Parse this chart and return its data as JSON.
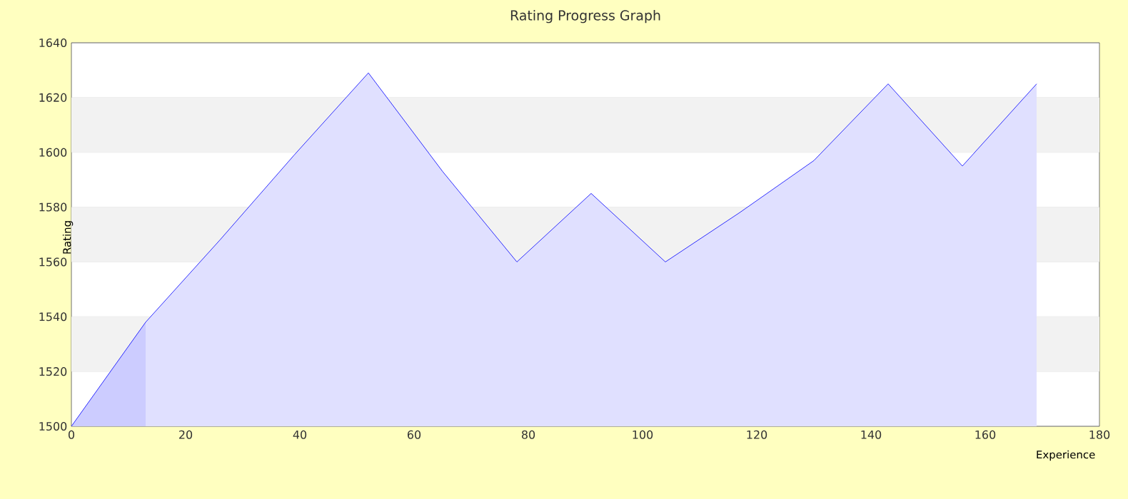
{
  "chart_data": {
    "type": "area",
    "title": "Rating Progress Graph",
    "xlabel": "Experience",
    "ylabel": "Rating",
    "series": [
      {
        "color": "#0000ff",
        "x": [
          0,
          13,
          26,
          39,
          52,
          65,
          78,
          91,
          104,
          117,
          130,
          143,
          156,
          169
        ],
        "values": [
          1500,
          1538,
          1568,
          1599,
          1629,
          1593,
          1560,
          1585,
          1560,
          1578,
          1597,
          1625,
          1595,
          1625
        ]
      },
      {
        "color": "#ccccff",
        "x": [
          0,
          13
        ],
        "values": [
          1500,
          1538
        ]
      }
    ],
    "xlim": [
      0,
      180
    ],
    "ylim": [
      1500,
      1640
    ],
    "xticks": [
      0,
      20,
      40,
      60,
      80,
      100,
      120,
      140,
      160,
      180
    ],
    "yticks": [
      1500,
      1520,
      1540,
      1560,
      1580,
      1600,
      1620,
      1640
    ],
    "grid": "y"
  }
}
